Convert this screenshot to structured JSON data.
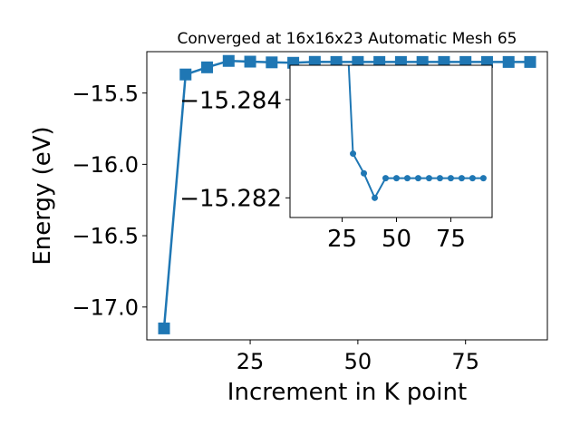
{
  "chart_data": [
    {
      "type": "line",
      "title": "Converged at 16x16x23 Automatic Mesh 65",
      "xlabel": "Increment in K point",
      "ylabel": "Energy (eV)",
      "xlim": [
        1,
        94
      ],
      "ylim": [
        -17.23,
        -15.21
      ],
      "xticks": [
        25,
        50,
        75
      ],
      "xtick_labels": [
        "25",
        "50",
        "75"
      ],
      "yticks": [
        -17.0,
        -16.5,
        -16.0,
        -15.5
      ],
      "ytick_labels": [
        "−17.0",
        "−16.5",
        "−16.0",
        "−15.5"
      ],
      "grid": false,
      "marker": "square",
      "color": "#1f77b4",
      "x": [
        5,
        10,
        15,
        20,
        25,
        30,
        35,
        40,
        45,
        50,
        55,
        60,
        65,
        70,
        75,
        80,
        85,
        90
      ],
      "y": [
        -17.15,
        -15.37,
        -15.32,
        -15.275,
        -15.28,
        -15.285,
        -15.288,
        -15.2817,
        -15.2823,
        -15.2822,
        -15.2823,
        -15.2823,
        -15.2823,
        -15.2823,
        -15.2823,
        -15.2823,
        -15.2823,
        -15.2823
      ]
    },
    {
      "type": "line",
      "title": "",
      "xlabel": "",
      "ylabel": "",
      "xlim": [
        1,
        94
      ],
      "ylim": [
        -15.2816,
        -15.2847
      ],
      "xticks": [
        25,
        50,
        75
      ],
      "xtick_labels": [
        "25",
        "50",
        "75"
      ],
      "yticks": [
        -15.284,
        -15.282
      ],
      "ytick_labels": [
        "−15.284",
        "−15.282"
      ],
      "grid": false,
      "marker": "circle",
      "color": "#1f77b4",
      "x": [
        25,
        30,
        35,
        40,
        45,
        50,
        55,
        60,
        65,
        70,
        75,
        80,
        85,
        90
      ],
      "y": [
        -15.2875,
        -15.2829,
        -15.2825,
        -15.282,
        -15.2824,
        -15.2824,
        -15.2824,
        -15.2824,
        -15.2824,
        -15.2824,
        -15.2824,
        -15.2824,
        -15.2824,
        -15.2824
      ]
    }
  ]
}
